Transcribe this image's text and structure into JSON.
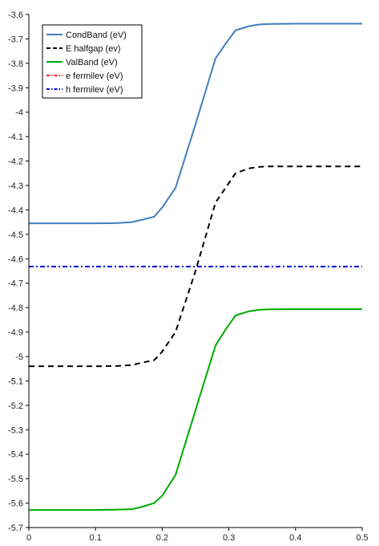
{
  "chart_data": {
    "type": "line",
    "xlim": [
      0,
      0.5
    ],
    "ylim": [
      -5.7,
      -3.6
    ],
    "x_ticks": [
      0,
      0.1,
      0.2,
      0.3,
      0.4,
      0.5
    ],
    "x_tick_labels": [
      "0",
      "0.1",
      "0.2",
      "0.3",
      "0.4",
      "0.5"
    ],
    "y_ticks": [
      -3.6,
      -3.7,
      -3.8,
      -3.9,
      -4.0,
      -4.1,
      -4.2,
      -4.3,
      -4.4,
      -4.5,
      -4.6,
      -4.7,
      -4.8,
      -4.9,
      -5.0,
      -5.1,
      -5.2,
      -5.3,
      -5.4,
      -5.5,
      -5.6,
      -5.7
    ],
    "y_tick_labels": [
      "-3.6",
      "-3.7",
      "-3.8",
      "-3.9",
      "-4",
      "-4.1",
      "-4.2",
      "-4.3",
      "-4.4",
      "-4.5",
      "-4.6",
      "-4.7",
      "-4.8",
      "-4.9",
      "-5",
      "-5.1",
      "-5.2",
      "-5.3",
      "-5.4",
      "-5.5",
      "-5.6",
      "-5.7"
    ],
    "grid": false,
    "legend_position": "top-left",
    "series": [
      {
        "name": "CondBand (eV)",
        "color": "#3f7fbf",
        "dash": "solid",
        "x": [
          0,
          0.1,
          0.13,
          0.155,
          0.17,
          0.188,
          0.2,
          0.22,
          0.25,
          0.28,
          0.295,
          0.31,
          0.33,
          0.345,
          0.36,
          0.4,
          0.5
        ],
        "y": [
          -4.455,
          -4.455,
          -4.454,
          -4.45,
          -4.44,
          -4.428,
          -4.39,
          -4.31,
          -4.05,
          -3.78,
          -3.72,
          -3.665,
          -3.648,
          -3.641,
          -3.639,
          -3.638,
          -3.638
        ]
      },
      {
        "name": "E halfgap (ev)",
        "color": "#000000",
        "dash": "dashed",
        "x": [
          0,
          0.1,
          0.13,
          0.155,
          0.17,
          0.188,
          0.2,
          0.22,
          0.25,
          0.28,
          0.295,
          0.31,
          0.33,
          0.345,
          0.36,
          0.4,
          0.5
        ],
        "y": [
          -5.04,
          -5.04,
          -5.039,
          -5.035,
          -5.025,
          -5.015,
          -4.98,
          -4.9,
          -4.65,
          -4.37,
          -4.31,
          -4.25,
          -4.23,
          -4.224,
          -4.222,
          -4.222,
          -4.222
        ]
      },
      {
        "name": "ValBand (eV)",
        "color": "#00aa00",
        "dash": "solid",
        "x": [
          0,
          0.1,
          0.13,
          0.155,
          0.17,
          0.188,
          0.2,
          0.22,
          0.25,
          0.28,
          0.295,
          0.31,
          0.33,
          0.345,
          0.36,
          0.4,
          0.5
        ],
        "y": [
          -5.628,
          -5.628,
          -5.627,
          -5.625,
          -5.615,
          -5.6,
          -5.57,
          -5.485,
          -5.22,
          -4.955,
          -4.89,
          -4.832,
          -4.815,
          -4.809,
          -4.807,
          -4.806,
          -4.806
        ]
      },
      {
        "name": "e fermilev (eV)",
        "color": "#e8201a",
        "dash": "dash-dot",
        "x": [
          0,
          0.5
        ],
        "y": [
          -4.632,
          -4.632
        ]
      },
      {
        "name": "h fermilev (eV)",
        "color": "#0000dd",
        "dash": "dash-dot",
        "x": [
          0,
          0.5
        ],
        "y": [
          -4.632,
          -4.632
        ]
      }
    ]
  }
}
